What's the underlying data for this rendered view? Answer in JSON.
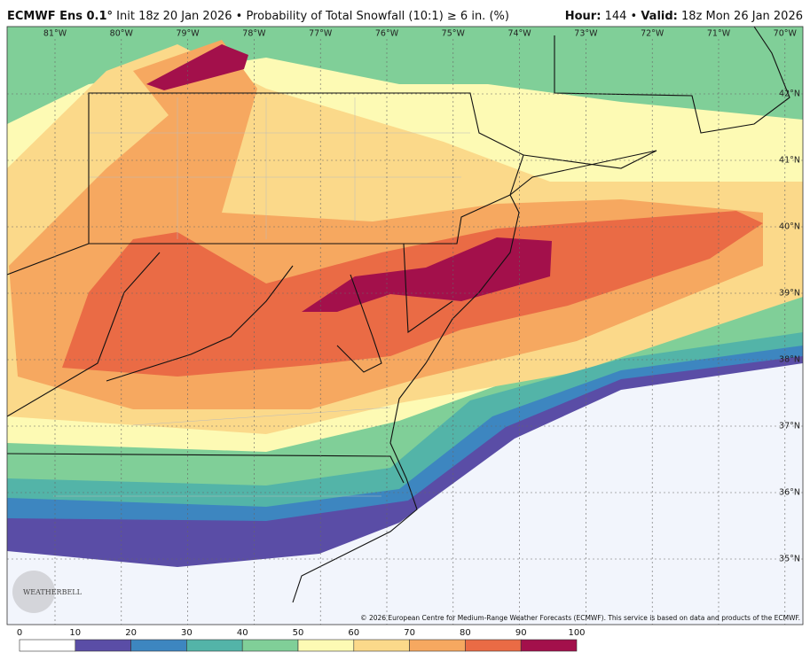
{
  "header": {
    "model": "ECMWF Ens 0.1°",
    "init": "Init 18z 20 Jan 2026 • Probability of Total Snowfall (10:1) ≥ 6 in. (%)",
    "hour_label": "Hour:",
    "hour": "144 •",
    "valid_label": "Valid:",
    "valid": "18z Mon 26 Jan 2026"
  },
  "map": {
    "lon_labels": [
      "81°W",
      "80°W",
      "79°W",
      "78°W",
      "77°W",
      "76°W",
      "75°W",
      "74°W",
      "73°W",
      "72°W",
      "71°W",
      "70°W"
    ],
    "lat_labels": [
      "42°N",
      "41°N",
      "40°N",
      "39°N",
      "38°N",
      "37°N",
      "36°N",
      "35°N"
    ],
    "logo": "WEATHERBELL",
    "credit": "© 2026 European Centre for Medium-Range Weather Forecasts (ECMWF). This service is based on data and products of the ECMWF."
  },
  "colorbar": {
    "ticks": [
      0,
      10,
      20,
      30,
      40,
      50,
      60,
      70,
      80,
      90,
      100
    ],
    "colors": [
      "#ffffff",
      "#5a4da6",
      "#3d86c0",
      "#53b4a8",
      "#80cf98",
      "#fdfab4",
      "#fbd98a",
      "#f6a860",
      "#ea6b45",
      "#a3104b"
    ]
  }
}
